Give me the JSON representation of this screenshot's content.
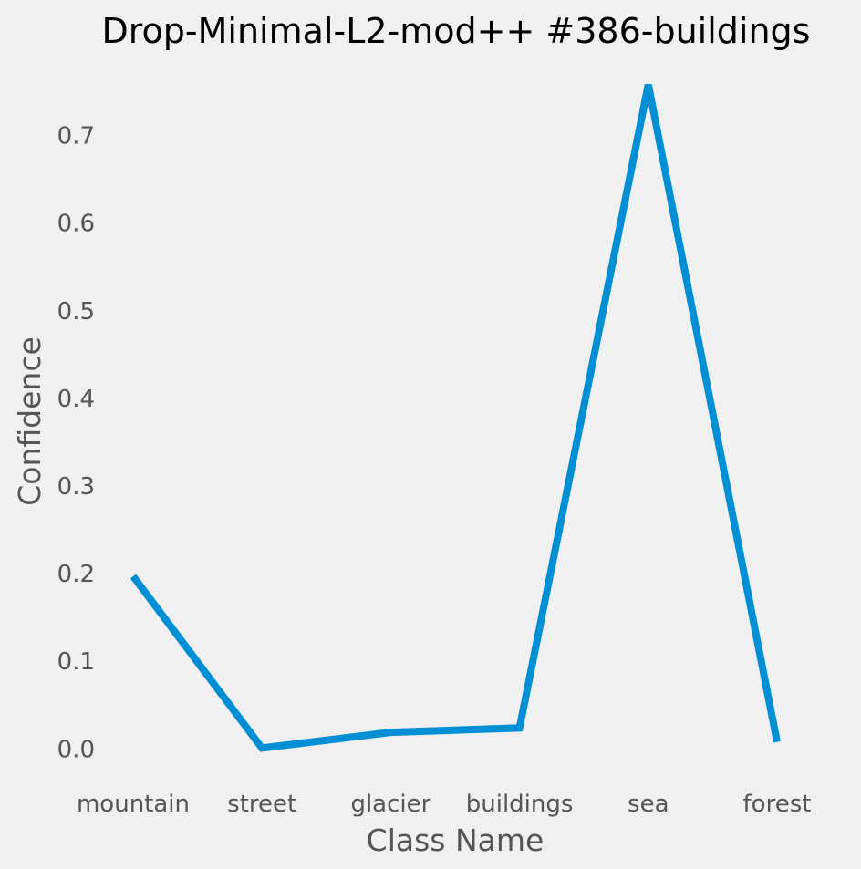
{
  "chart_data": {
    "type": "line",
    "title": "Drop-Minimal-L2-mod++ #386-buildings",
    "xlabel": "Class Name",
    "ylabel": "Confidence",
    "categories": [
      "mountain",
      "street",
      "glacier",
      "buildings",
      "sea",
      "forest"
    ],
    "series": [
      {
        "values": [
          0.197,
          0.001,
          0.019,
          0.024,
          0.758,
          0.008
        ]
      }
    ],
    "y_ticks": [
      "0.0",
      "0.1",
      "0.2",
      "0.3",
      "0.4",
      "0.5",
      "0.6",
      "0.7"
    ],
    "ylim": [
      -0.035,
      0.79
    ],
    "grid": false,
    "legend": "none",
    "colors": {
      "background": "#f0f0f0",
      "line": "#008fd5",
      "tick_text": "#555555",
      "title_text": "#000000"
    }
  }
}
